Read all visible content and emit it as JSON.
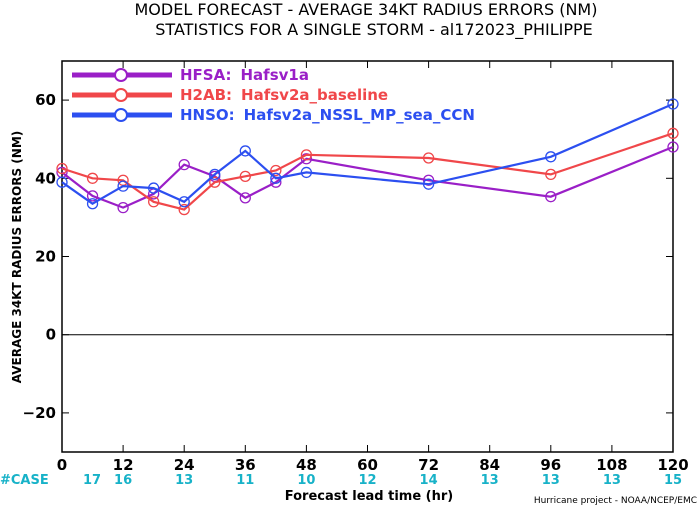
{
  "chart_data": {
    "type": "line",
    "title": "MODEL FORECAST - AVERAGE 34KT RADIUS ERRORS (NM)",
    "subtitle": "STATISTICS FOR A SINGLE STORM - al172023_PHILIPPE",
    "xlabel": "Forecast lead time (hr)",
    "ylabel": "AVERAGE 34KT RADIUS ERRORS (NM)",
    "xlim": [
      0,
      120
    ],
    "ylim": [
      -30,
      70
    ],
    "x_ticks": [
      0,
      12,
      24,
      36,
      48,
      60,
      72,
      84,
      96,
      108,
      120
    ],
    "y_ticks": [
      -20,
      0,
      20,
      40,
      60
    ],
    "grid": false,
    "legend_position": "top-left",
    "case_label": "#CASE",
    "case_counts": [
      "17",
      "16",
      "13",
      "11",
      "10",
      "12",
      "14",
      "13",
      "13",
      "13",
      "15"
    ],
    "credit": "Hurricane project - NOAA/NCEP/EMC",
    "series": [
      {
        "name": "HFSA:",
        "desc": "Hafsv1a",
        "color": "#9a1fc7",
        "x": [
          0,
          6,
          12,
          18,
          24,
          30,
          36,
          42,
          48,
          72,
          96,
          120
        ],
        "y": [
          41.5,
          35.5,
          32.5,
          36,
          43.5,
          40.5,
          35,
          39,
          45,
          39.5,
          35.3,
          48
        ]
      },
      {
        "name": "H2AB:",
        "desc": "Hafsv2a_baseline",
        "color": "#f0474a",
        "x": [
          0,
          6,
          12,
          18,
          24,
          30,
          36,
          42,
          48,
          72,
          96,
          120
        ],
        "y": [
          42.5,
          40,
          39.5,
          34,
          32,
          39,
          40.5,
          42,
          46,
          45.2,
          41,
          51.5
        ]
      },
      {
        "name": "HNSO:",
        "desc": "Hafsv2a_NSSL_MP_sea_CCN",
        "color": "#2c4ff0",
        "x": [
          0,
          6,
          12,
          18,
          24,
          30,
          36,
          42,
          48,
          72,
          96,
          120
        ],
        "y": [
          39,
          33.5,
          38,
          37.5,
          34,
          41,
          47,
          40,
          41.5,
          38.5,
          45.5,
          59
        ]
      }
    ]
  }
}
